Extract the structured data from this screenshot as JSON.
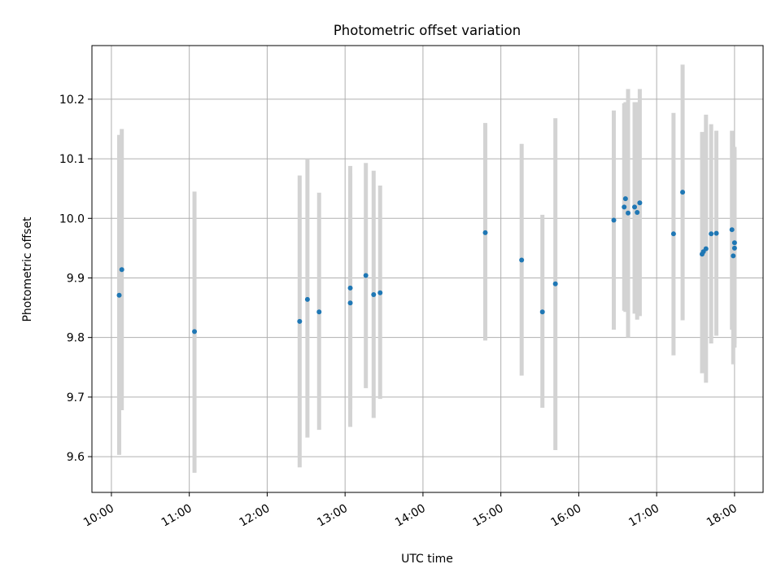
{
  "chart_data": {
    "type": "scatter",
    "title": "Photometric offset variation",
    "xlabel": "UTC time",
    "ylabel": "Photometric offset",
    "xlim": [
      "09:45",
      "18:22"
    ],
    "ylim": [
      9.54,
      10.29
    ],
    "x_ticks": [
      "10:00",
      "11:00",
      "12:00",
      "13:00",
      "14:00",
      "15:00",
      "16:00",
      "17:00",
      "18:00"
    ],
    "y_ticks": [
      "9.6",
      "9.7",
      "9.8",
      "9.9",
      "10.0",
      "10.1",
      "10.2"
    ],
    "grid": true,
    "marker_color": "#1f77b4",
    "errorbar_color": "#d3d3d3",
    "points": [
      {
        "t": "10:06",
        "y": 9.871,
        "lo": 9.603,
        "hi": 10.14
      },
      {
        "t": "10:08",
        "y": 9.914,
        "lo": 9.678,
        "hi": 10.15
      },
      {
        "t": "11:04",
        "y": 9.81,
        "lo": 9.573,
        "hi": 10.045
      },
      {
        "t": "12:25",
        "y": 9.827,
        "lo": 9.582,
        "hi": 10.072
      },
      {
        "t": "12:31",
        "y": 9.864,
        "lo": 9.632,
        "hi": 10.1
      },
      {
        "t": "12:40",
        "y": 9.843,
        "lo": 9.645,
        "hi": 10.043
      },
      {
        "t": "13:04",
        "y": 9.883,
        "lo": 9.68,
        "hi": 10.075
      },
      {
        "t": "13:04",
        "y": 9.858,
        "lo": 9.65,
        "hi": 10.088
      },
      {
        "t": "13:16",
        "y": 9.904,
        "lo": 9.715,
        "hi": 10.093
      },
      {
        "t": "13:22",
        "y": 9.872,
        "lo": 9.665,
        "hi": 10.08
      },
      {
        "t": "13:27",
        "y": 9.875,
        "lo": 9.697,
        "hi": 10.055
      },
      {
        "t": "14:48",
        "y": 9.976,
        "lo": 9.795,
        "hi": 10.16
      },
      {
        "t": "15:16",
        "y": 9.93,
        "lo": 9.736,
        "hi": 10.125
      },
      {
        "t": "15:32",
        "y": 9.843,
        "lo": 9.682,
        "hi": 10.006
      },
      {
        "t": "15:42",
        "y": 9.89,
        "lo": 9.611,
        "hi": 10.168
      },
      {
        "t": "16:27",
        "y": 9.997,
        "lo": 9.813,
        "hi": 10.181
      },
      {
        "t": "16:35",
        "y": 10.019,
        "lo": 9.845,
        "hi": 10.193
      },
      {
        "t": "16:36",
        "y": 10.033,
        "lo": 9.843,
        "hi": 10.195
      },
      {
        "t": "16:38",
        "y": 10.009,
        "lo": 9.8,
        "hi": 10.217
      },
      {
        "t": "16:43",
        "y": 10.019,
        "lo": 9.84,
        "hi": 10.195
      },
      {
        "t": "16:45",
        "y": 10.01,
        "lo": 9.83,
        "hi": 10.195
      },
      {
        "t": "16:47",
        "y": 10.026,
        "lo": 9.836,
        "hi": 10.217
      },
      {
        "t": "17:13",
        "y": 9.974,
        "lo": 9.77,
        "hi": 10.177
      },
      {
        "t": "17:20",
        "y": 10.044,
        "lo": 9.829,
        "hi": 10.258
      },
      {
        "t": "17:35",
        "y": 9.94,
        "lo": 9.74,
        "hi": 10.145
      },
      {
        "t": "17:36",
        "y": 9.944,
        "lo": 9.75,
        "hi": 10.135
      },
      {
        "t": "17:38",
        "y": 9.949,
        "lo": 9.724,
        "hi": 10.174
      },
      {
        "t": "17:42",
        "y": 9.974,
        "lo": 9.79,
        "hi": 10.158
      },
      {
        "t": "17:46",
        "y": 9.975,
        "lo": 9.803,
        "hi": 10.147
      },
      {
        "t": "17:58",
        "y": 9.981,
        "lo": 9.813,
        "hi": 10.147
      },
      {
        "t": "17:59",
        "y": 9.937,
        "lo": 9.755,
        "hi": 10.12
      },
      {
        "t": "18:00",
        "y": 9.95,
        "lo": 9.79,
        "hi": 10.115
      },
      {
        "t": "18:00",
        "y": 9.959,
        "lo": 9.783,
        "hi": 10.12
      }
    ]
  }
}
